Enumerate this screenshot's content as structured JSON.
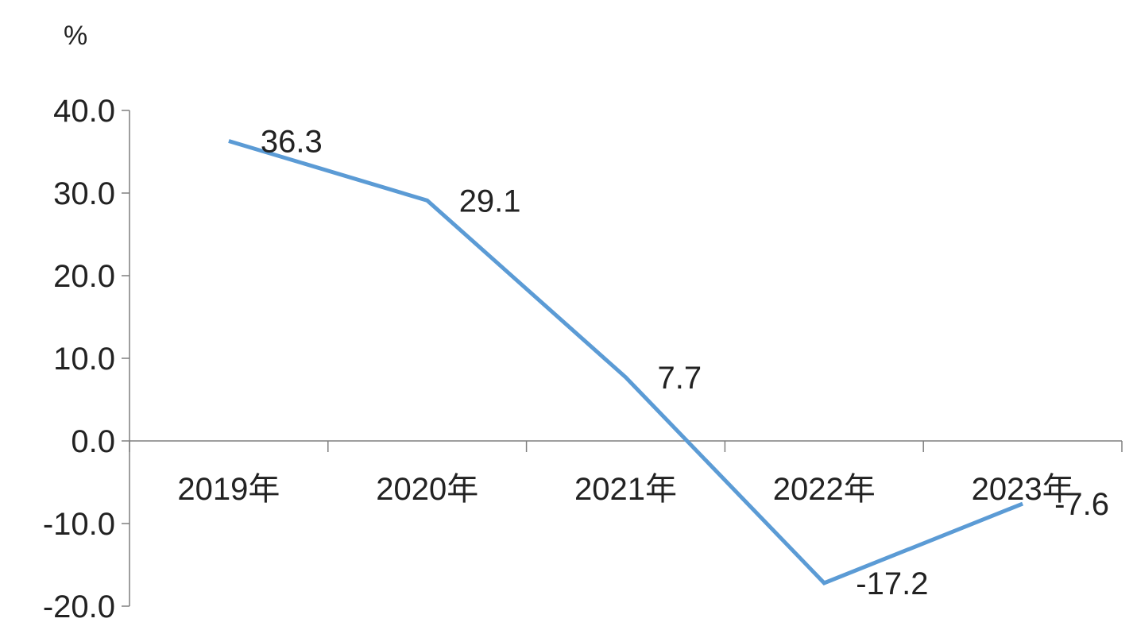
{
  "chart_data": {
    "type": "line",
    "title": "",
    "xlabel": "",
    "ylabel": "%",
    "categories": [
      "2019年",
      "2020年",
      "2021年",
      "2022年",
      "2023年"
    ],
    "series": [
      {
        "values": [
          36.3,
          29.1,
          7.7,
          -17.2,
          -7.6
        ],
        "labels": [
          "36.3",
          "29.1",
          "7.7",
          "-17.2",
          "-7.6"
        ],
        "color": "#5b9bd5"
      }
    ],
    "ylim": [
      -20,
      40
    ],
    "yticks": [
      40,
      30,
      20,
      10,
      0,
      -10,
      -20
    ],
    "ytick_labels": [
      "40.0",
      "30.0",
      "20.0",
      "10.0",
      "0.0",
      "-10.0",
      "-20.0"
    ],
    "grid": false,
    "legend": "none"
  }
}
